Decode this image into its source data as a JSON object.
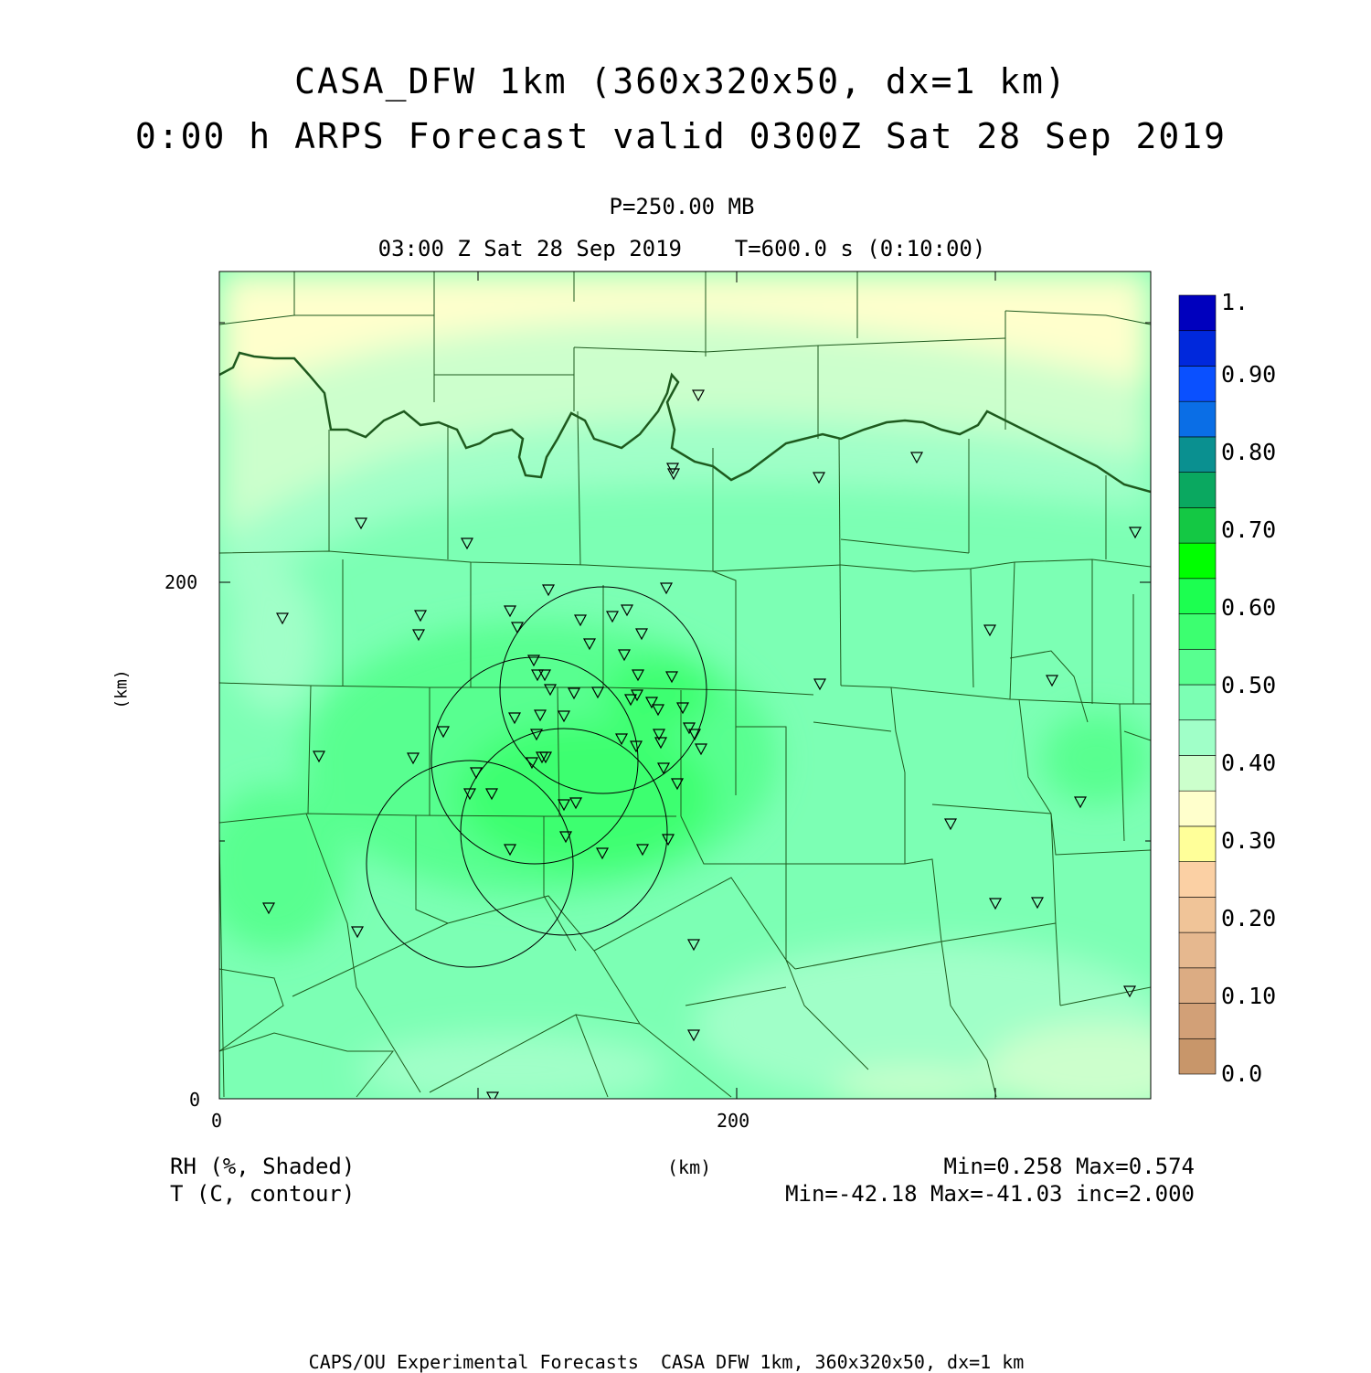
{
  "header": {
    "title": "CASA_DFW 1km (360x320x50, dx=1 km)",
    "subtitle": "0:00 h ARPS Forecast valid 0300Z Sat 28 Sep 2019",
    "level": "P=250.00 MB",
    "valid_time": "03:00 Z Sat 28 Sep 2019    T=600.0 s (0:10:00)"
  },
  "axes": {
    "x_label": "(km)",
    "y_label": "(km)",
    "x_ticks": [
      "0",
      "200"
    ],
    "y_ticks": [
      "0",
      "200"
    ],
    "x_range_km": [
      0,
      360
    ],
    "y_range_km": [
      0,
      320
    ]
  },
  "legend": {
    "shaded": "RH (%, Shaded)",
    "contour": "T (C, contour)",
    "shaded_stats": "Min=0.258 Max=0.574",
    "contour_stats": "Min=-42.18 Max=-41.03 inc=2.000"
  },
  "colorbar": {
    "labels": [
      "1.",
      "0.90",
      "0.80",
      "0.70",
      "0.60",
      "0.50",
      "0.40",
      "0.30",
      "0.20",
      "0.10",
      "0.0"
    ],
    "colors": [
      "#c8966a",
      "#d2a077",
      "#dcac83",
      "#e6b88f",
      "#f0c498",
      "#fbd0a4",
      "#ffff99",
      "#ffffcc",
      "#ccffcc",
      "#a0ffc8",
      "#7cffb4",
      "#58ff90",
      "#3cff70",
      "#1cff50",
      "#00ff00",
      "#14c844",
      "#0aa860",
      "#0a9090",
      "#0a6ee6",
      "#0a50ff",
      "#0028dc",
      "#0000be"
    ]
  },
  "footer": "CAPS/OU Experimental Forecasts  CASA DFW 1km, 360x320x50, dx=1 km"
}
